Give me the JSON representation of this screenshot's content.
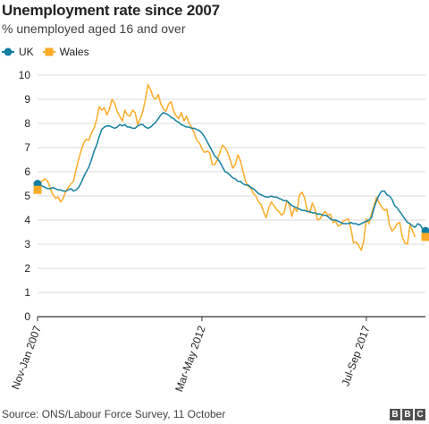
{
  "title": "Unemployment rate since 2007",
  "subtitle": "% unemployed aged 16 and over",
  "source": "Source: ONS/Labour Force Survey, 11 October",
  "logo_letters": [
    "B",
    "B",
    "C"
  ],
  "colors": {
    "uk": "#1380a1",
    "wales": "#fcab27",
    "grid": "#d9d9d9",
    "axis": "#333333"
  },
  "legend": [
    {
      "label": "UK",
      "marker": "circle",
      "color": "#1380a1"
    },
    {
      "label": "Wales",
      "marker": "square",
      "color": "#fcab27"
    }
  ],
  "chart_data": {
    "type": "line",
    "x_note": "monthly rolling 3-month periods, Nov-Jan 2007 to Jun-Aug 2022",
    "x_tick_labels": [
      {
        "index": 0,
        "label": "Nov-Jan 2007"
      },
      {
        "index": 64,
        "label": "Mar-May 2012"
      },
      {
        "index": 128,
        "label": "Jul-Sep 2017"
      }
    ],
    "ylim": [
      0,
      10
    ],
    "yticks": [
      0,
      1,
      2,
      3,
      4,
      5,
      6,
      7,
      8,
      9,
      10
    ],
    "grid": "horizontal",
    "series": [
      {
        "name": "UK",
        "color": "#1380a1",
        "end_marker": "circle",
        "values": [
          5.5,
          5.45,
          5.4,
          5.35,
          5.3,
          5.3,
          5.35,
          5.3,
          5.25,
          5.25,
          5.2,
          5.2,
          5.25,
          5.3,
          5.2,
          5.25,
          5.35,
          5.55,
          5.8,
          6.0,
          6.2,
          6.5,
          6.85,
          7.1,
          7.45,
          7.75,
          7.85,
          7.9,
          7.9,
          7.85,
          7.8,
          7.85,
          7.95,
          7.9,
          7.95,
          7.85,
          7.85,
          7.8,
          7.8,
          7.9,
          7.95,
          7.95,
          7.85,
          7.8,
          7.85,
          7.95,
          8.05,
          8.2,
          8.35,
          8.45,
          8.4,
          8.35,
          8.25,
          8.2,
          8.1,
          8.05,
          7.95,
          7.9,
          7.85,
          7.85,
          7.8,
          7.8,
          7.75,
          7.7,
          7.6,
          7.45,
          7.25,
          7.05,
          6.85,
          6.65,
          6.55,
          6.4,
          6.2,
          6.0,
          5.95,
          5.85,
          5.75,
          5.7,
          5.6,
          5.6,
          5.5,
          5.45,
          5.45,
          5.35,
          5.3,
          5.2,
          5.1,
          5.05,
          5.0,
          4.95,
          4.95,
          5.0,
          4.95,
          4.95,
          4.9,
          4.85,
          4.8,
          4.8,
          4.7,
          4.6,
          4.55,
          4.5,
          4.45,
          4.4,
          4.4,
          4.35,
          4.35,
          4.3,
          4.3,
          4.25,
          4.25,
          4.2,
          4.2,
          4.15,
          4.05,
          4.0,
          4.0,
          3.95,
          3.9,
          3.85,
          3.85,
          3.85,
          3.9,
          3.85,
          3.85,
          3.8,
          3.85,
          3.9,
          3.95,
          4.0,
          4.1,
          4.5,
          4.8,
          5.05,
          5.2,
          5.2,
          5.05,
          5.0,
          4.85,
          4.6,
          4.5,
          4.35,
          4.2,
          4.05,
          3.9,
          3.85,
          3.75,
          3.7,
          3.85,
          3.8,
          3.6,
          3.55
        ]
      },
      {
        "name": "Wales",
        "color": "#fcab27",
        "end_marker": "square",
        "values": [
          5.25,
          5.55,
          5.65,
          5.7,
          5.6,
          5.3,
          5.05,
          4.9,
          4.95,
          4.75,
          4.9,
          5.2,
          5.35,
          5.5,
          5.6,
          6.1,
          6.5,
          6.9,
          7.2,
          7.35,
          7.3,
          7.6,
          7.8,
          8.15,
          8.7,
          8.55,
          8.65,
          8.35,
          8.6,
          9.0,
          8.85,
          8.5,
          8.3,
          8.1,
          8.55,
          8.35,
          8.3,
          8.55,
          8.45,
          7.95,
          8.2,
          8.5,
          9.0,
          9.6,
          9.4,
          9.1,
          9.0,
          9.2,
          8.8,
          8.6,
          8.5,
          8.8,
          8.9,
          8.5,
          8.3,
          8.2,
          8.45,
          8.1,
          8.3,
          8.0,
          7.85,
          7.6,
          7.3,
          7.2,
          6.95,
          6.8,
          6.85,
          6.8,
          6.3,
          6.3,
          6.5,
          6.8,
          7.1,
          7.0,
          6.8,
          6.5,
          6.15,
          6.3,
          6.7,
          6.45,
          6.0,
          5.6,
          5.4,
          5.35,
          5.1,
          5.0,
          4.75,
          4.65,
          4.35,
          4.1,
          4.5,
          4.75,
          4.6,
          4.45,
          4.35,
          4.2,
          4.3,
          4.8,
          4.65,
          4.15,
          4.5,
          4.35,
          5.05,
          5.15,
          4.9,
          4.4,
          4.3,
          4.7,
          4.45,
          4.0,
          4.05,
          4.25,
          4.35,
          4.2,
          4.25,
          3.9,
          3.95,
          3.75,
          3.8,
          3.95,
          4.0,
          4.05,
          3.65,
          3.05,
          3.1,
          2.95,
          2.75,
          3.15,
          4.05,
          3.85,
          4.25,
          4.6,
          4.95,
          4.7,
          4.55,
          4.4,
          4.45,
          3.8,
          3.55,
          3.65,
          3.85,
          3.9,
          3.3,
          3.05,
          3.0,
          3.8,
          3.55,
          3.3
        ]
      }
    ]
  }
}
